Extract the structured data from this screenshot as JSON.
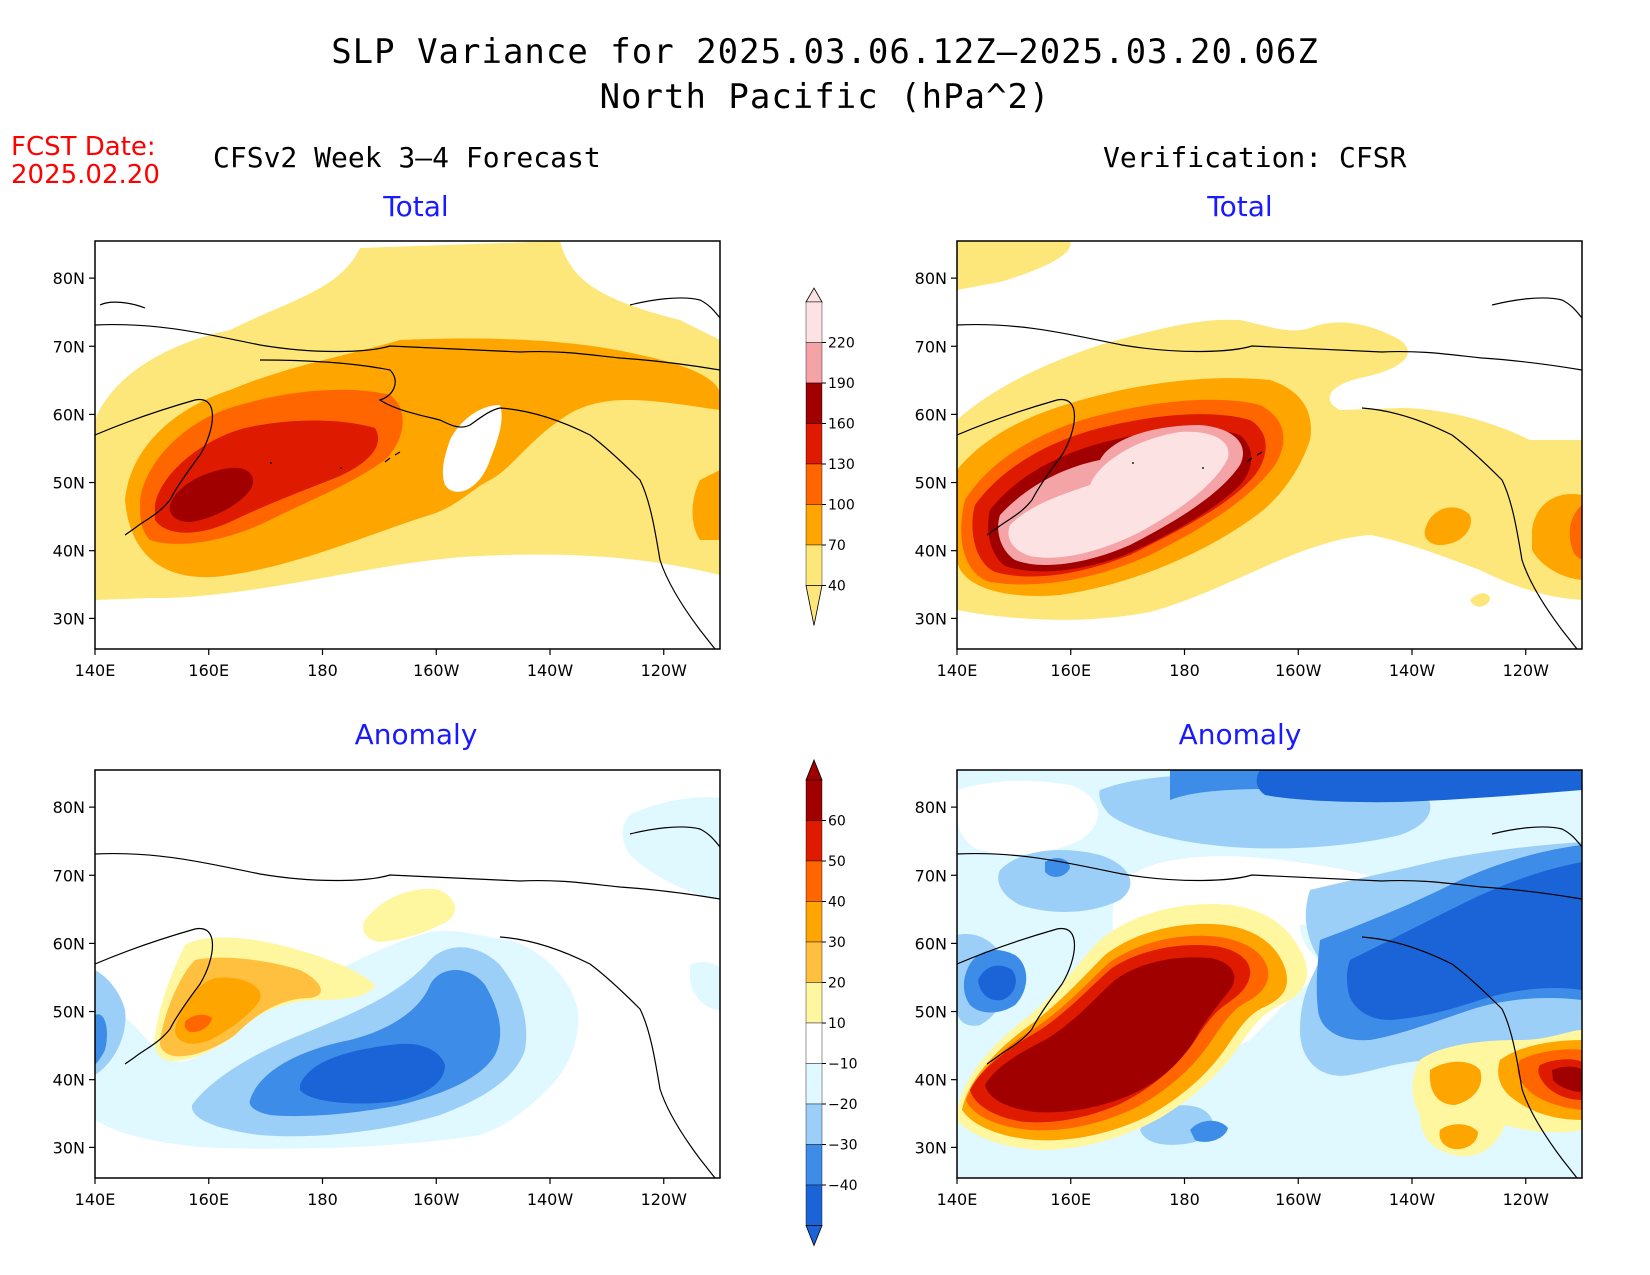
{
  "title": {
    "line1": "SLP Variance for 2025.03.06.12Z–2025.03.20.06Z",
    "line2": "North Pacific (hPa^2)"
  },
  "fcst": {
    "label": "FCST Date:",
    "date": "2025.02.20"
  },
  "columns": {
    "left": "CFSv2 Week 3–4 Forecast",
    "right": "Verification: CFSR"
  },
  "panels": {
    "total_label": "Total",
    "anomaly_label": "Anomaly"
  },
  "axes": {
    "lat_labels": [
      "80N",
      "70N",
      "60N",
      "50N",
      "40N",
      "30N"
    ],
    "lon_labels": [
      "140E",
      "160E",
      "180",
      "160W",
      "140W",
      "120W"
    ]
  },
  "colorbar_total": {
    "levels": [
      "220",
      "190",
      "160",
      "130",
      "100",
      "70",
      "40"
    ],
    "colors": [
      "#fde2e4",
      "#f4a3a7",
      "#a00000",
      "#de1a00",
      "#ff6600",
      "#ffa500",
      "#fde67a"
    ]
  },
  "colorbar_anomaly": {
    "levels": [
      "60",
      "50",
      "40",
      "30",
      "20",
      "10",
      "−10",
      "−20",
      "−30",
      "−40"
    ],
    "colors": [
      "#a00000",
      "#de1a00",
      "#ff6600",
      "#ffa500",
      "#ffc040",
      "#fff6a0",
      "#ffffff",
      "#e0f8ff",
      "#9ccff8",
      "#3d8ce8",
      "#1a64d8"
    ]
  }
}
